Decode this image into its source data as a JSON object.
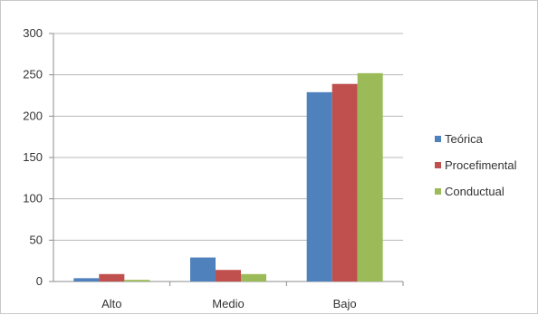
{
  "chart_data": {
    "type": "bar",
    "categories": [
      "Alto",
      "Medio",
      "Bajo"
    ],
    "series": [
      {
        "name": "Teórica",
        "values": [
          4,
          29,
          229
        ],
        "color": "#4f81bd"
      },
      {
        "name": "Procefimental",
        "values": [
          9,
          14,
          239
        ],
        "color": "#c0504d"
      },
      {
        "name": "Conductual",
        "values": [
          2,
          9,
          252
        ],
        "color": "#9bbb59"
      }
    ],
    "title": "",
    "xlabel": "",
    "ylabel": "",
    "ylim": [
      0,
      300
    ],
    "yticks": [
      "0",
      "50",
      "100",
      "150",
      "200",
      "250",
      "300"
    ],
    "grid": true,
    "legend": "right"
  }
}
